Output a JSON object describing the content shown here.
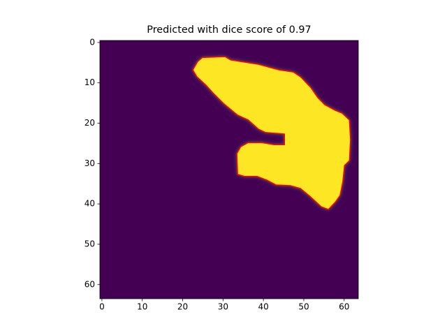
{
  "chart_data": {
    "type": "contour",
    "title": "Predicted with dice score of 0.97",
    "xlim": [
      -0.5,
      63.5
    ],
    "ylim": [
      63.5,
      -0.5
    ],
    "xticks": [
      0,
      10,
      20,
      30,
      40,
      50,
      60
    ],
    "yticks": [
      0,
      10,
      20,
      30,
      40,
      50,
      60
    ],
    "background_color": "#440154",
    "fill_color": "#fde725",
    "series": [
      {
        "color": "#ff0000",
        "x": [
          23.7,
          24.9,
          30.5,
          31.9,
          38.8,
          41.4,
          44.0,
          47.4,
          49.2,
          51.7,
          53.5,
          55.2,
          57.8,
          59.5,
          61.3,
          61.6,
          61.3,
          60.1,
          59.7,
          59.0,
          57.8,
          56.1,
          54.3,
          51.7,
          49.2,
          46.7,
          43.1,
          40.8,
          38.4,
          35.3,
          33.6,
          33.4,
          34.4,
          36.2,
          39.6,
          42.6,
          45.2,
          45.2,
          40.5,
          38.8,
          36.2,
          33.6,
          30.1,
          27.5,
          25.8,
          23.5,
          22.5
        ],
        "y": [
          4.7,
          3.7,
          3.5,
          4.3,
          5.4,
          6.1,
          6.8,
          7.3,
          8.5,
          11.1,
          13.7,
          15.4,
          16.8,
          17.5,
          19.2,
          24.1,
          29.3,
          30.5,
          34.4,
          37.9,
          39.6,
          41.4,
          40.7,
          38.3,
          36.2,
          35.5,
          35.3,
          34.1,
          33.2,
          33.2,
          32.7,
          27.5,
          25.8,
          24.8,
          24.8,
          25.3,
          25.3,
          22.7,
          22.3,
          21.5,
          19.2,
          18.0,
          15.1,
          12.5,
          10.6,
          8.5,
          6.8
        ]
      }
    ]
  }
}
